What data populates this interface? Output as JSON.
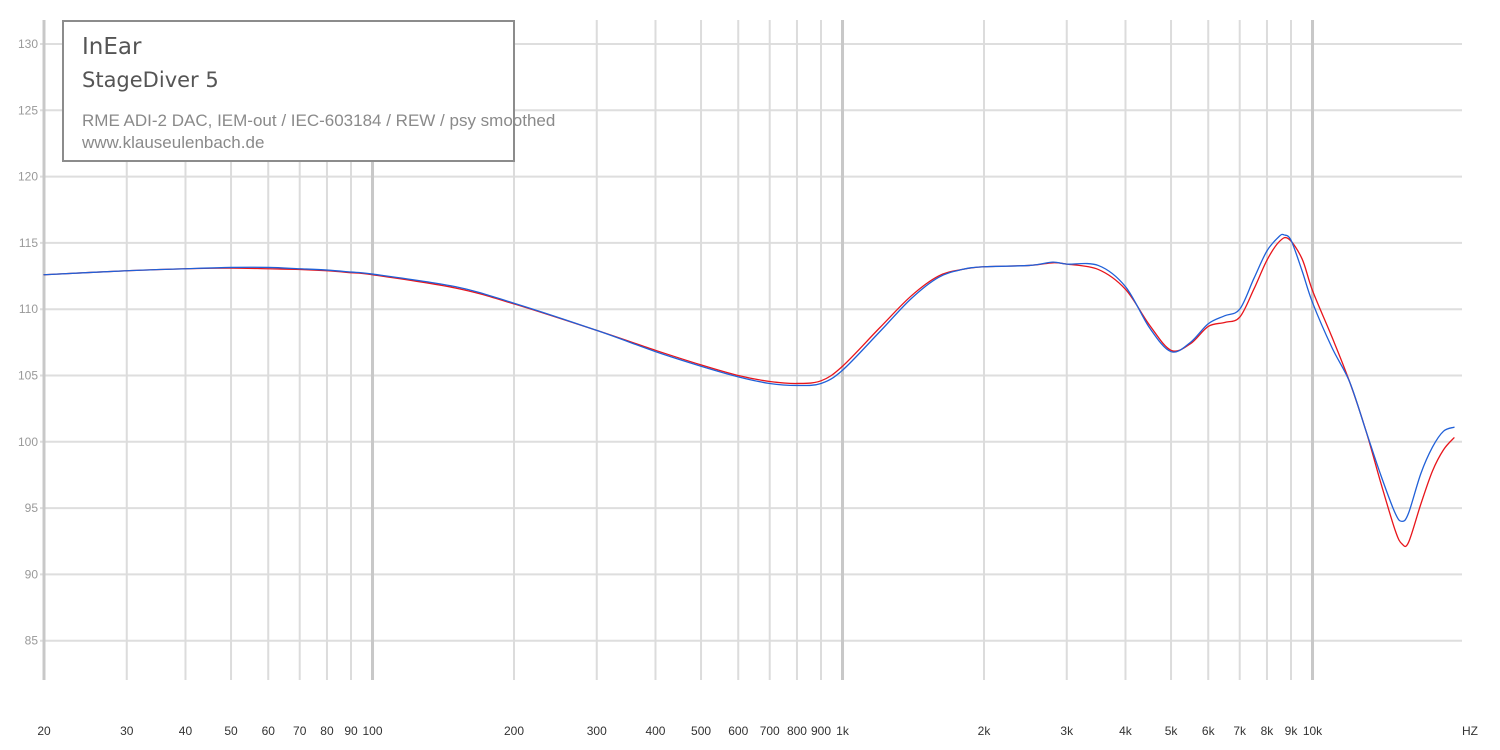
{
  "legend": {
    "title": "InEar",
    "model": "StageDiver 5",
    "rig": "RME ADI-2 DAC, IEM-out / IEC-603184 / REW / psy smoothed",
    "url": "www.klauseulenbach.de"
  },
  "chart_data": {
    "type": "line",
    "x_scale": "log",
    "xlim": [
      20,
      20000
    ],
    "ylim": [
      82,
      132
    ],
    "x_unit_label": "HZ",
    "x_ticks": [
      {
        "v": 20,
        "label": "20"
      },
      {
        "v": 30,
        "label": "30"
      },
      {
        "v": 40,
        "label": "40"
      },
      {
        "v": 50,
        "label": "50"
      },
      {
        "v": 60,
        "label": "60"
      },
      {
        "v": 70,
        "label": "70"
      },
      {
        "v": 80,
        "label": "80"
      },
      {
        "v": 90,
        "label": "90"
      },
      {
        "v": 100,
        "label": "100"
      },
      {
        "v": 200,
        "label": "200"
      },
      {
        "v": 300,
        "label": "300"
      },
      {
        "v": 400,
        "label": "400"
      },
      {
        "v": 500,
        "label": "500"
      },
      {
        "v": 600,
        "label": "600"
      },
      {
        "v": 700,
        "label": "700"
      },
      {
        "v": 800,
        "label": "800"
      },
      {
        "v": 900,
        "label": "900"
      },
      {
        "v": 1000,
        "label": "1k"
      },
      {
        "v": 2000,
        "label": "2k"
      },
      {
        "v": 3000,
        "label": "3k"
      },
      {
        "v": 4000,
        "label": "4k"
      },
      {
        "v": 5000,
        "label": "5k"
      },
      {
        "v": 6000,
        "label": "6k"
      },
      {
        "v": 7000,
        "label": "7k"
      },
      {
        "v": 8000,
        "label": "8k"
      },
      {
        "v": 9000,
        "label": "9k"
      },
      {
        "v": 10000,
        "label": "10k"
      }
    ],
    "y_ticks": [
      85,
      90,
      95,
      100,
      105,
      110,
      115,
      120,
      125,
      130
    ],
    "grid": true,
    "legend_position": "top-left",
    "series": [
      {
        "color": "#e8151b",
        "points": [
          [
            20,
            112.6
          ],
          [
            30,
            112.9
          ],
          [
            40,
            113.05
          ],
          [
            50,
            113.1
          ],
          [
            60,
            113.05
          ],
          [
            70,
            113.0
          ],
          [
            80,
            112.9
          ],
          [
            90,
            112.75
          ],
          [
            100,
            112.6
          ],
          [
            150,
            111.6
          ],
          [
            200,
            110.4
          ],
          [
            300,
            108.4
          ],
          [
            400,
            106.9
          ],
          [
            500,
            105.8
          ],
          [
            600,
            105.0
          ],
          [
            700,
            104.55
          ],
          [
            800,
            104.4
          ],
          [
            900,
            104.6
          ],
          [
            1000,
            105.7
          ],
          [
            1200,
            108.6
          ],
          [
            1400,
            111.0
          ],
          [
            1600,
            112.5
          ],
          [
            1800,
            113.0
          ],
          [
            2000,
            113.2
          ],
          [
            2500,
            113.3
          ],
          [
            2800,
            113.5
          ],
          [
            3000,
            113.4
          ],
          [
            3500,
            113.0
          ],
          [
            4000,
            111.5
          ],
          [
            4500,
            108.8
          ],
          [
            5000,
            106.9
          ],
          [
            5500,
            107.4
          ],
          [
            6000,
            108.7
          ],
          [
            6500,
            109.0
          ],
          [
            7000,
            109.4
          ],
          [
            7500,
            111.5
          ],
          [
            8000,
            113.7
          ],
          [
            8500,
            115.1
          ],
          [
            8900,
            115.3
          ],
          [
            9500,
            113.8
          ],
          [
            10000,
            111.4
          ],
          [
            11000,
            107.9
          ],
          [
            12000,
            104.5
          ],
          [
            13000,
            100.8
          ],
          [
            14000,
            96.8
          ],
          [
            15000,
            93.3
          ],
          [
            15500,
            92.3
          ],
          [
            16000,
            92.4
          ],
          [
            17000,
            95.3
          ],
          [
            18000,
            97.8
          ],
          [
            19000,
            99.4
          ],
          [
            20000,
            100.3
          ]
        ]
      },
      {
        "color": "#2060d8",
        "points": [
          [
            20,
            112.6
          ],
          [
            30,
            112.9
          ],
          [
            40,
            113.05
          ],
          [
            50,
            113.15
          ],
          [
            60,
            113.15
          ],
          [
            70,
            113.05
          ],
          [
            80,
            112.95
          ],
          [
            90,
            112.8
          ],
          [
            100,
            112.65
          ],
          [
            150,
            111.7
          ],
          [
            200,
            110.45
          ],
          [
            300,
            108.4
          ],
          [
            400,
            106.8
          ],
          [
            500,
            105.7
          ],
          [
            600,
            104.9
          ],
          [
            700,
            104.4
          ],
          [
            800,
            104.25
          ],
          [
            900,
            104.4
          ],
          [
            1000,
            105.4
          ],
          [
            1200,
            108.3
          ],
          [
            1400,
            110.8
          ],
          [
            1600,
            112.4
          ],
          [
            1800,
            113.0
          ],
          [
            2000,
            113.2
          ],
          [
            2500,
            113.3
          ],
          [
            2800,
            113.55
          ],
          [
            3000,
            113.4
          ],
          [
            3500,
            113.3
          ],
          [
            4000,
            111.7
          ],
          [
            4500,
            108.6
          ],
          [
            5000,
            106.8
          ],
          [
            5500,
            107.5
          ],
          [
            6000,
            108.9
          ],
          [
            6500,
            109.5
          ],
          [
            7000,
            110.0
          ],
          [
            7500,
            112.3
          ],
          [
            8000,
            114.4
          ],
          [
            8500,
            115.5
          ],
          [
            8700,
            115.6
          ],
          [
            9000,
            115.2
          ],
          [
            9500,
            112.9
          ],
          [
            10000,
            110.5
          ],
          [
            11000,
            107.1
          ],
          [
            12000,
            104.5
          ],
          [
            13000,
            100.8
          ],
          [
            14000,
            97.4
          ],
          [
            15000,
            94.6
          ],
          [
            15500,
            94.0
          ],
          [
            16000,
            94.6
          ],
          [
            17000,
            97.6
          ],
          [
            18000,
            99.6
          ],
          [
            19000,
            100.8
          ],
          [
            20000,
            101.1
          ]
        ]
      }
    ]
  }
}
